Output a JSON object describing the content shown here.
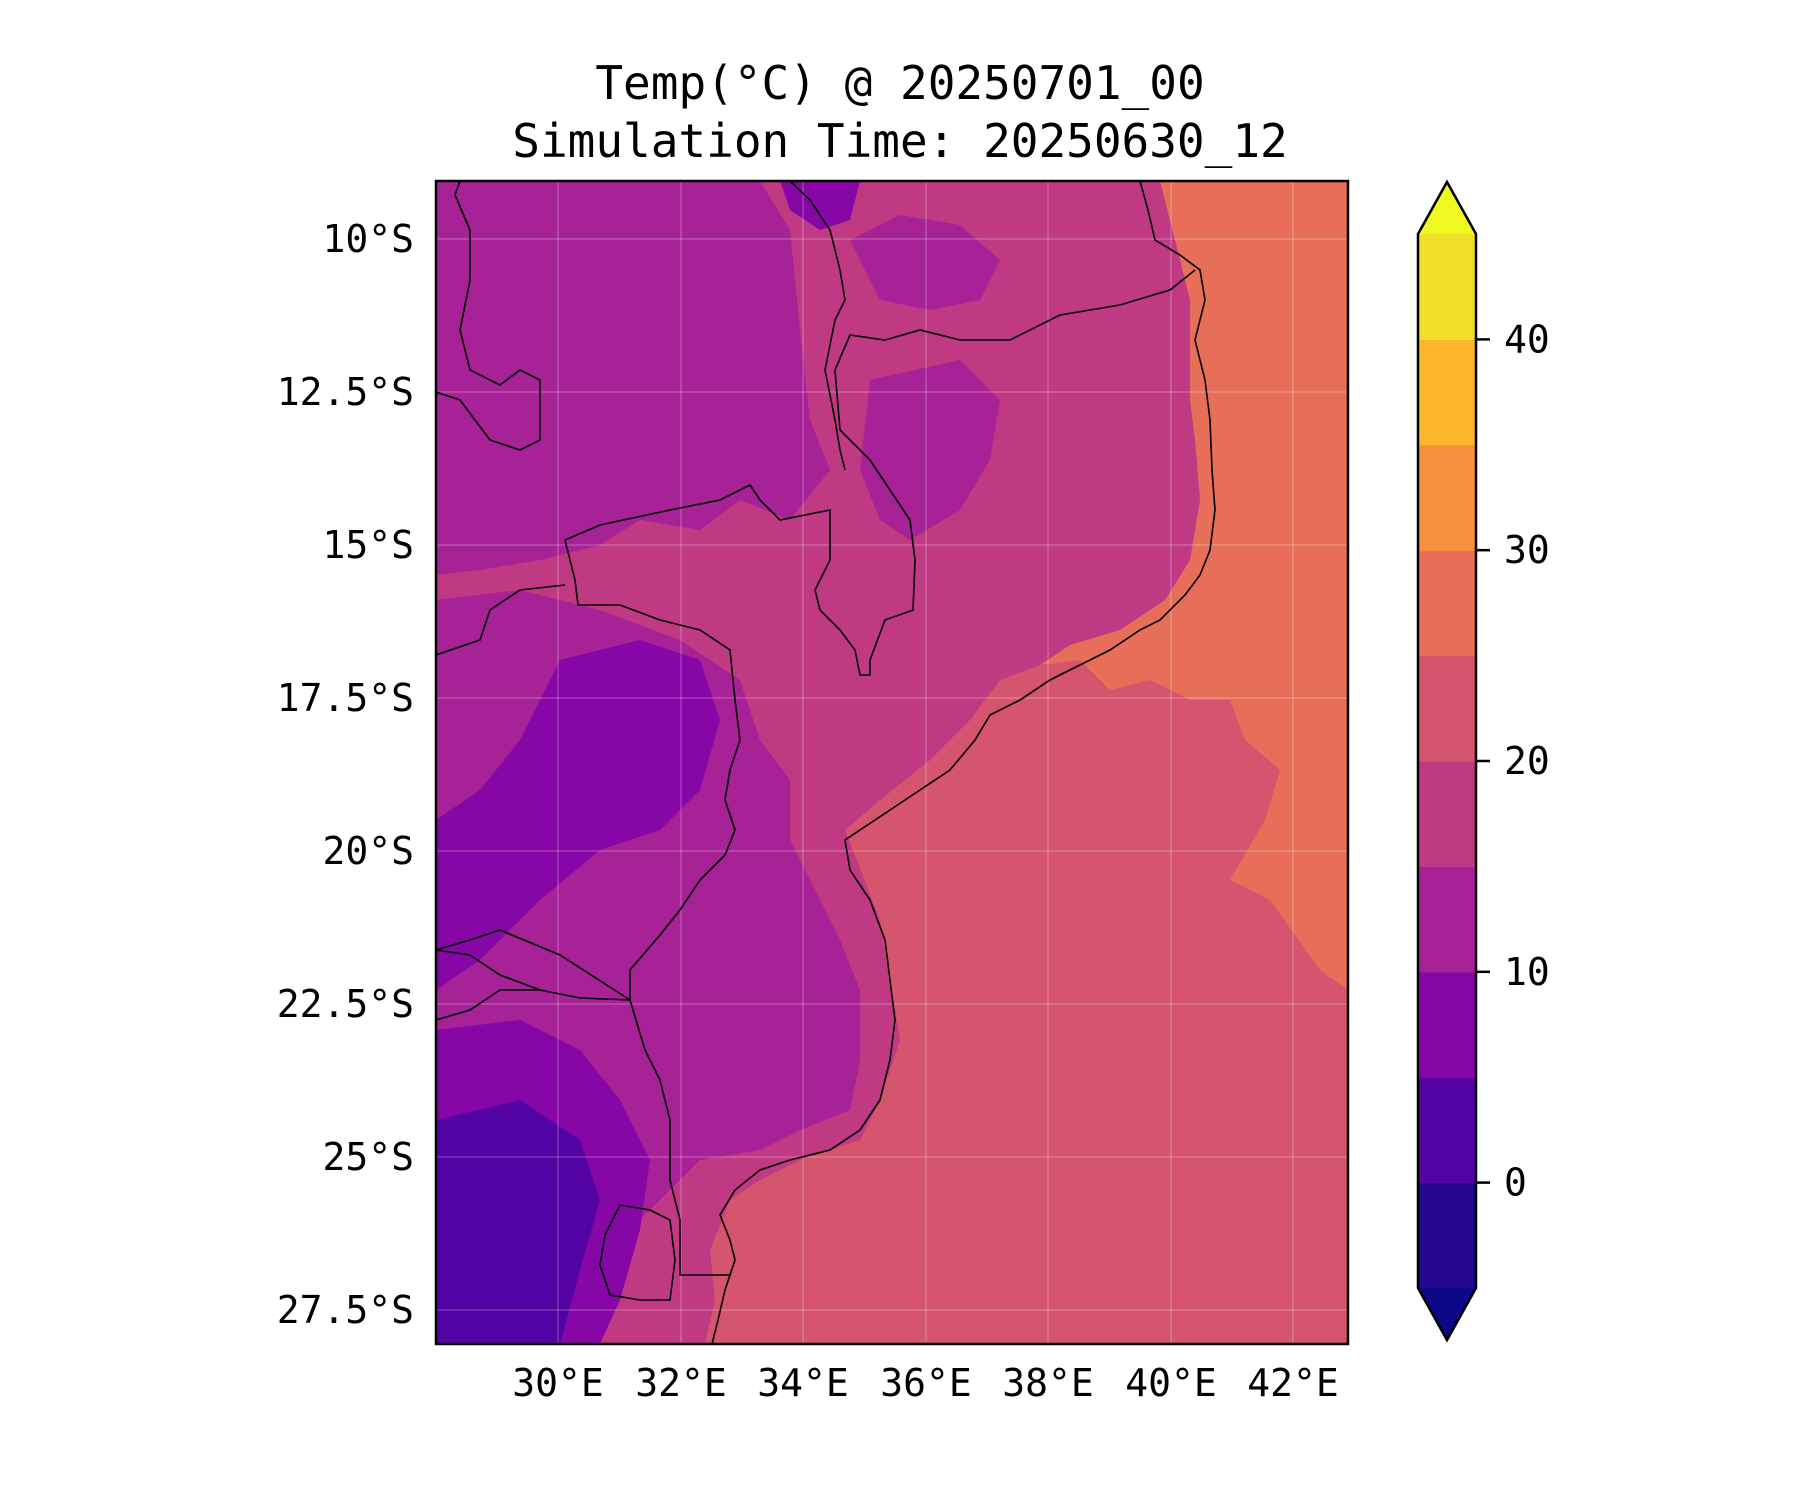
{
  "title": "Temp(°C) @ 20250701_00",
  "subtitle": "Simulation Time: 20250630_12",
  "map": {
    "region": "Mozambique and surroundings",
    "lon_range": [
      28.1,
      43.0
    ],
    "lat_range": [
      -28.4,
      -9.4
    ],
    "lat_ticks": [
      {
        "value": -10,
        "label": "10°S"
      },
      {
        "value": -12.5,
        "label": "12.5°S"
      },
      {
        "value": -15,
        "label": "15°S"
      },
      {
        "value": -17.5,
        "label": "17.5°S"
      },
      {
        "value": -20,
        "label": "20°S"
      },
      {
        "value": -22.5,
        "label": "22.5°S"
      },
      {
        "value": -25,
        "label": "25°S"
      },
      {
        "value": -27.5,
        "label": "27.5°S"
      }
    ],
    "lon_ticks": [
      {
        "value": 30,
        "label": "30°E"
      },
      {
        "value": 32,
        "label": "32°E"
      },
      {
        "value": 34,
        "label": "34°E"
      },
      {
        "value": 36,
        "label": "36°E"
      },
      {
        "value": 38,
        "label": "38°E"
      },
      {
        "value": 40,
        "label": "40°E"
      },
      {
        "value": 42,
        "label": "42°E"
      }
    ],
    "grid": true
  },
  "colorbar": {
    "levels": [
      -5,
      0,
      5,
      10,
      15,
      20,
      25,
      30,
      35,
      40,
      45
    ],
    "colors": [
      "#24068f",
      "#5302a3",
      "#8707a6",
      "#a72197",
      "#c03a83",
      "#d5546e",
      "#e76f5a",
      "#f5903f",
      "#feb72d",
      "#f1e02a"
    ],
    "under_color": "#0d0887",
    "over_color": "#f0f921",
    "ticks": [
      {
        "value": 0,
        "label": "0"
      },
      {
        "value": 10,
        "label": "10"
      },
      {
        "value": 20,
        "label": "20"
      },
      {
        "value": 30,
        "label": "30"
      },
      {
        "value": 40,
        "label": "40"
      }
    ],
    "extend": "both"
  }
}
